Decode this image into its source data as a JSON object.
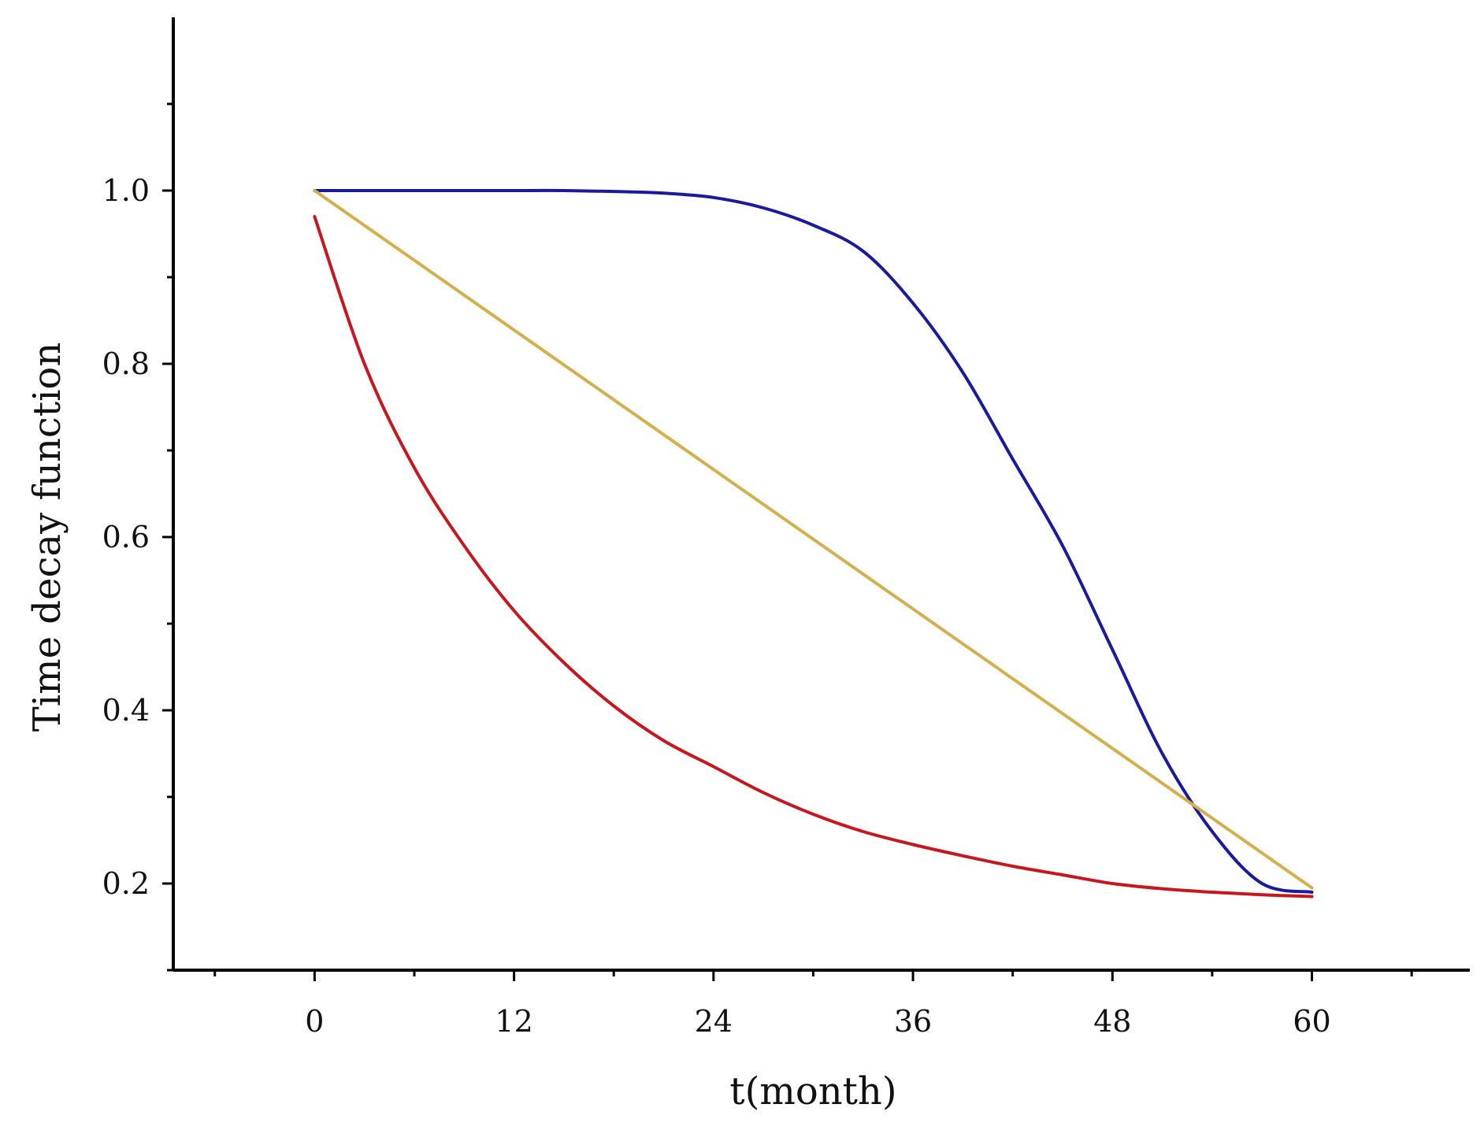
{
  "chart_data": {
    "type": "line",
    "title": "",
    "xlabel": "t(month)",
    "ylabel": "Time decay function",
    "xlim": [
      -8.5,
      69.5
    ],
    "ylim": [
      0.1,
      1.2
    ],
    "xticks": [
      0,
      12,
      24,
      36,
      48,
      60
    ],
    "xtick_labels": [
      "0",
      "12",
      "24",
      "36",
      "48",
      "60"
    ],
    "yticks": [
      0.2,
      0.4,
      0.6,
      0.8,
      1.0
    ],
    "ytick_labels": [
      "0.2",
      "0.4",
      "0.6",
      "0.8",
      "1.0"
    ],
    "grid": false,
    "legend": "none",
    "series": [
      {
        "color": "#1a1a9e",
        "x": [
          0,
          3,
          6,
          9,
          12,
          15,
          18,
          21,
          24,
          27,
          30,
          33,
          36,
          39,
          42,
          45,
          48,
          51,
          54,
          57,
          60
        ],
        "y": [
          1.0,
          1.0,
          1.0,
          1.0,
          1.0,
          1.0,
          0.999,
          0.997,
          0.992,
          0.98,
          0.96,
          0.93,
          0.87,
          0.79,
          0.69,
          0.59,
          0.47,
          0.35,
          0.26,
          0.2,
          0.19
        ]
      },
      {
        "color": "#d4b04c",
        "x": [
          0,
          60
        ],
        "y": [
          1.0,
          0.195
        ]
      },
      {
        "color": "#c8161d",
        "x": [
          0,
          3,
          6,
          9,
          12,
          15,
          18,
          21,
          24,
          27,
          30,
          33,
          36,
          39,
          42,
          45,
          48,
          51,
          54,
          57,
          60
        ],
        "y": [
          0.97,
          0.8,
          0.68,
          0.59,
          0.515,
          0.455,
          0.405,
          0.365,
          0.335,
          0.305,
          0.28,
          0.26,
          0.245,
          0.232,
          0.22,
          0.21,
          0.2,
          0.194,
          0.19,
          0.187,
          0.185
        ]
      }
    ]
  }
}
